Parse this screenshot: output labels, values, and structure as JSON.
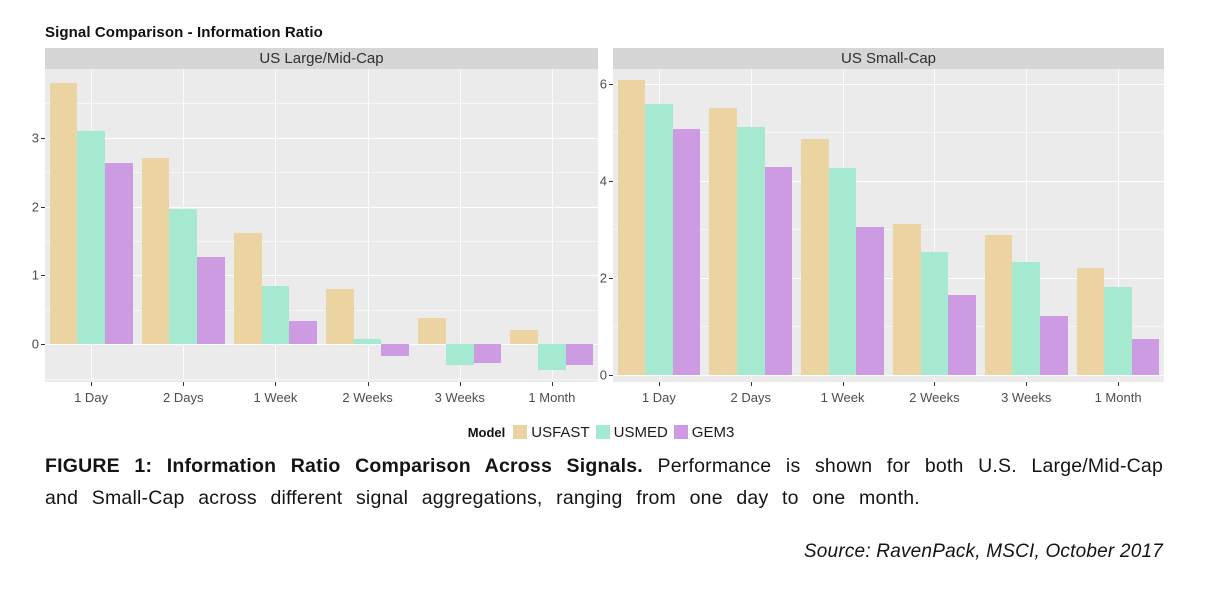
{
  "page": {
    "title": "Signal Comparison - Information Ratio",
    "caption_bold": "FIGURE 1: Information Ratio Comparison Across Signals.",
    "caption_rest": "Performance is shown for both U.S. Large/Mid-Cap and Small-Cap across different signal aggregations, ranging from one day to one month.",
    "source": "Source: RavenPack, MSCI, October 2017"
  },
  "legend": {
    "title": "Model",
    "entries": [
      {
        "label": "USFAST",
        "color": "#ebd3a2"
      },
      {
        "label": "USMED",
        "color": "#a5ead0"
      },
      {
        "label": "GEM3",
        "color": "#cc9be2"
      }
    ]
  },
  "colors": {
    "panel_background": "#ebebeb",
    "strip_background": "#d6d6d6",
    "gridline": "#ffffff",
    "axis_text": "#4d4d4d",
    "tick_mark": "#333333"
  },
  "chart_data": [
    {
      "type": "bar",
      "title": "US Large/Mid-Cap",
      "categories": [
        "1 Day",
        "2 Days",
        "1 Week",
        "2 Weeks",
        "3 Weeks",
        "1 Month"
      ],
      "series": [
        {
          "name": "USFAST",
          "color": "#ebd3a2",
          "values": [
            3.8,
            2.7,
            1.62,
            0.8,
            0.38,
            0.2
          ]
        },
        {
          "name": "USMED",
          "color": "#a5ead0",
          "values": [
            3.1,
            1.97,
            0.84,
            0.07,
            -0.3,
            -0.38
          ]
        },
        {
          "name": "GEM3",
          "color": "#cc9be2",
          "values": [
            2.63,
            1.27,
            0.33,
            -0.17,
            -0.28,
            -0.31
          ]
        }
      ],
      "xlabel": "",
      "ylabel": "",
      "ylim": [
        -0.55,
        4.0
      ],
      "yticks": [
        0,
        1,
        2,
        3
      ],
      "yminor": [
        -0.5,
        0.5,
        1.5,
        2.5,
        3.5
      ],
      "grid": true,
      "legend_position": "bottom"
    },
    {
      "type": "bar",
      "title": "US Small-Cap",
      "categories": [
        "1 Day",
        "2 Days",
        "1 Week",
        "2 Weeks",
        "3 Weeks",
        "1 Month"
      ],
      "series": [
        {
          "name": "USFAST",
          "color": "#ebd3a2",
          "values": [
            6.07,
            5.5,
            4.85,
            3.1,
            2.87,
            2.2
          ]
        },
        {
          "name": "USMED",
          "color": "#a5ead0",
          "values": [
            5.58,
            5.1,
            4.25,
            2.52,
            2.33,
            1.8
          ]
        },
        {
          "name": "GEM3",
          "color": "#cc9be2",
          "values": [
            5.07,
            4.28,
            3.05,
            1.65,
            1.22,
            0.73
          ]
        }
      ],
      "xlabel": "",
      "ylabel": "",
      "ylim": [
        -0.15,
        6.3
      ],
      "yticks": [
        0,
        2,
        4,
        6
      ],
      "yminor": [
        1,
        3,
        5
      ],
      "grid": true,
      "legend_position": "bottom"
    }
  ]
}
